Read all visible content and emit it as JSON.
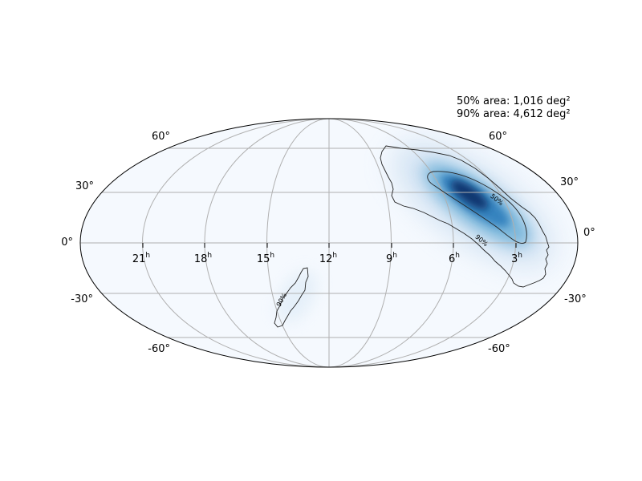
{
  "annotations": {
    "area_50": "50% area: 1,016 deg²",
    "area_90": "90% area: 4,612 deg²"
  },
  "axes": {
    "dec_labels_left": [
      "60°",
      "30°",
      "0°",
      "-30°",
      "-60°"
    ],
    "dec_labels_right": [
      "60°",
      "30°",
      "0°",
      "-30°",
      "-60°"
    ],
    "ra_labels": [
      {
        "hours": "21",
        "sup": "h"
      },
      {
        "hours": "18",
        "sup": "h"
      },
      {
        "hours": "15",
        "sup": "h"
      },
      {
        "hours": "12",
        "sup": "h"
      },
      {
        "hours": "9",
        "sup": "h"
      },
      {
        "hours": "6",
        "sup": "h"
      },
      {
        "hours": "3",
        "sup": "h"
      }
    ]
  },
  "contours": {
    "label_50": "50%",
    "label_90_main": "90%",
    "label_90_secondary": "90%"
  },
  "colors": {
    "background_fill": "#f5f9fe",
    "probability_max": "#08306b",
    "probability_mid": "#2f7ebc",
    "grid": "#b0b0b0"
  }
}
